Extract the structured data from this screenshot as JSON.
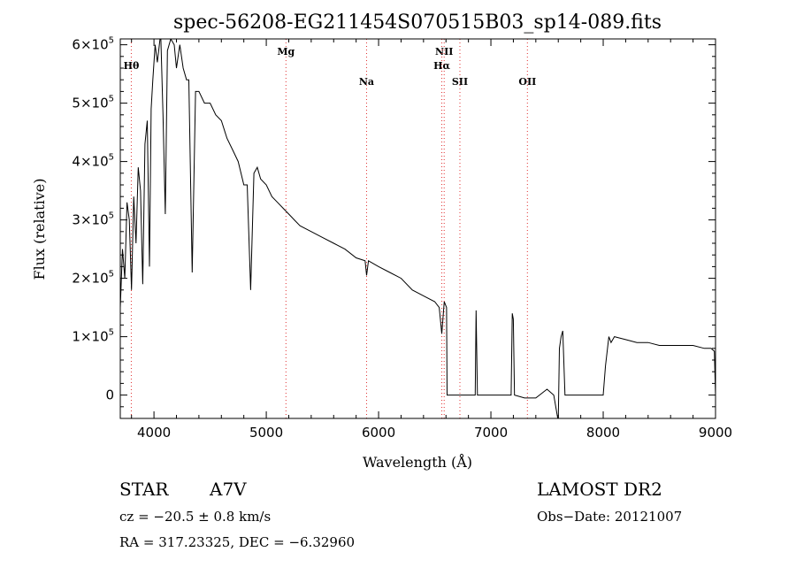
{
  "chart_data": {
    "type": "line",
    "title": "spec-56208-EG211454S070515B03_sp14-089.fits",
    "xlabel": "Wavelength (Å)",
    "ylabel": "Flux (relative)",
    "xlim": [
      3700,
      9000
    ],
    "ylim": [
      -40000,
      610000
    ],
    "grid": false,
    "x_ticks": [
      {
        "value": 4000,
        "label": "4000"
      },
      {
        "value": 5000,
        "label": "5000"
      },
      {
        "value": 6000,
        "label": "6000"
      },
      {
        "value": 7000,
        "label": "7000"
      },
      {
        "value": 8000,
        "label": "8000"
      },
      {
        "value": 9000,
        "label": "9000"
      }
    ],
    "y_ticks": [
      {
        "value": 0,
        "mant": "0",
        "exp": ""
      },
      {
        "value": 100000,
        "mant": "1×10",
        "exp": "5"
      },
      {
        "value": 200000,
        "mant": "2×10",
        "exp": "5"
      },
      {
        "value": 300000,
        "mant": "3×10",
        "exp": "5"
      },
      {
        "value": 400000,
        "mant": "4×10",
        "exp": "5"
      },
      {
        "value": 500000,
        "mant": "5×10",
        "exp": "5"
      },
      {
        "value": 600000,
        "mant": "6×10",
        "exp": "5"
      }
    ],
    "spectral_lines": [
      {
        "label": "Hθ",
        "wavelength": 3798
      },
      {
        "label": "Mg",
        "wavelength": 5175
      },
      {
        "label": "Na",
        "wavelength": 5893
      },
      {
        "label": "NII",
        "wavelength": 6584
      },
      {
        "label": "Hα",
        "wavelength": 6563
      },
      {
        "label": "SII",
        "wavelength": 6724
      },
      {
        "label": "OII",
        "wavelength": 7325
      }
    ],
    "series": [
      {
        "x": [
          3700,
          3720,
          3740,
          3760,
          3780,
          3800,
          3820,
          3840,
          3860,
          3880,
          3900,
          3920,
          3940,
          3960,
          3975,
          3990,
          4010,
          4030,
          4060,
          4080,
          4101,
          4120,
          4150,
          4180,
          4200,
          4230,
          4260,
          4290,
          4310,
          4340,
          4370,
          4400,
          4450,
          4500,
          4550,
          4600,
          4650,
          4700,
          4750,
          4800,
          4830,
          4861,
          4890,
          4920,
          4950,
          5000,
          5050,
          5100,
          5150,
          5200,
          5250,
          5300,
          5400,
          5500,
          5600,
          5700,
          5800,
          5880,
          5893,
          5910,
          6000,
          6100,
          6200,
          6300,
          6400,
          6500,
          6540,
          6563,
          6585,
          6605,
          6610,
          6700,
          6800,
          6860,
          6868,
          6880,
          6900,
          7000,
          7100,
          7180,
          7190,
          7200,
          7210,
          7300,
          7400,
          7500,
          7560,
          7600,
          7610,
          7625,
          7640,
          7660,
          7680,
          7700,
          7800,
          7900,
          8000,
          8020,
          8050,
          8070,
          8100,
          8200,
          8300,
          8400,
          8500,
          8600,
          8700,
          8800,
          8900,
          8960,
          8990,
          9000
        ],
        "y": [
          150000,
          250000,
          200000,
          330000,
          300000,
          180000,
          340000,
          260000,
          390000,
          350000,
          190000,
          430000,
          470000,
          220000,
          490000,
          540000,
          600000,
          570000,
          620000,
          480000,
          310000,
          590000,
          610000,
          600000,
          560000,
          600000,
          560000,
          540000,
          540000,
          210000,
          520000,
          520000,
          500000,
          500000,
          480000,
          470000,
          440000,
          420000,
          400000,
          360000,
          360000,
          180000,
          380000,
          390000,
          370000,
          360000,
          340000,
          330000,
          320000,
          310000,
          300000,
          290000,
          280000,
          270000,
          260000,
          250000,
          235000,
          230000,
          205000,
          230000,
          220000,
          210000,
          200000,
          180000,
          170000,
          160000,
          150000,
          105000,
          160000,
          150000,
          0,
          0,
          0,
          0,
          145000,
          0,
          0,
          0,
          0,
          0,
          140000,
          130000,
          0,
          -5000,
          -5000,
          10000,
          0,
          -45000,
          80000,
          100000,
          110000,
          0,
          0,
          0,
          0,
          0,
          0,
          50000,
          100000,
          90000,
          100000,
          95000,
          90000,
          90000,
          85000,
          85000,
          85000,
          85000,
          80000,
          80000,
          75000,
          0
        ]
      }
    ]
  },
  "info": {
    "obj_type": "STAR",
    "subclass": "A7V",
    "survey": "LAMOST DR2",
    "cz": "cz = −20.5 ± 0.8 km/s",
    "obs_date": "Obs−Date: 20121007",
    "radec": "RA = 317.23325, DEC =  −6.32960"
  }
}
